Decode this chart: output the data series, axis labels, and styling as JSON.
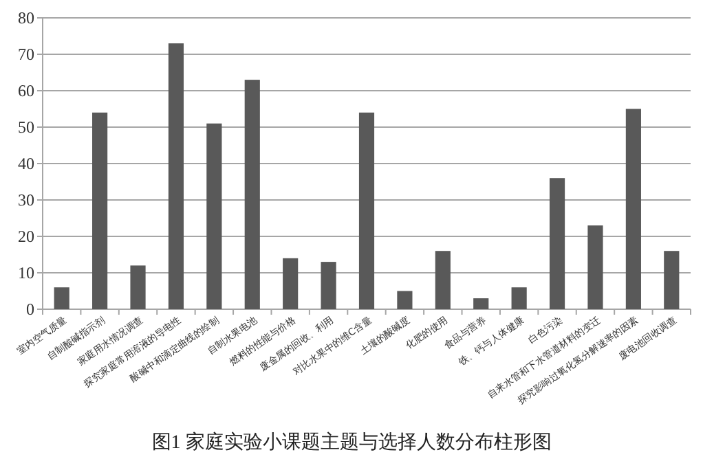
{
  "chart_data": {
    "type": "bar",
    "categories": [
      "室内空气质量",
      "自制酸碱指示剂",
      "家庭用水情况调查",
      "探究家庭常用溶液的导电性",
      "酸碱中和滴定曲线的绘制",
      "自制水果电池",
      "燃料的性能与价格",
      "废金属的回收、利用",
      "对比水果中的维C含量",
      "土壤的酸碱度",
      "化肥的使用",
      "食品与营养",
      "铁、钙与人体健康",
      "白色污染",
      "自来水管和下水管道材料的变迁",
      "探究影响过氧化氢分解速率的因素",
      "废电池回收调查"
    ],
    "values": [
      6,
      54,
      12,
      73,
      51,
      63,
      14,
      13,
      54,
      5,
      16,
      3,
      6,
      36,
      23,
      55,
      16
    ],
    "color": "#595959",
    "ylim": [
      0,
      80
    ],
    "yticks": [
      0,
      10,
      20,
      30,
      40,
      50,
      60,
      70,
      80
    ],
    "grid": "y",
    "annotations": [
      "图1  家庭实验小课题主题与选择人数分布柱形图"
    ]
  }
}
